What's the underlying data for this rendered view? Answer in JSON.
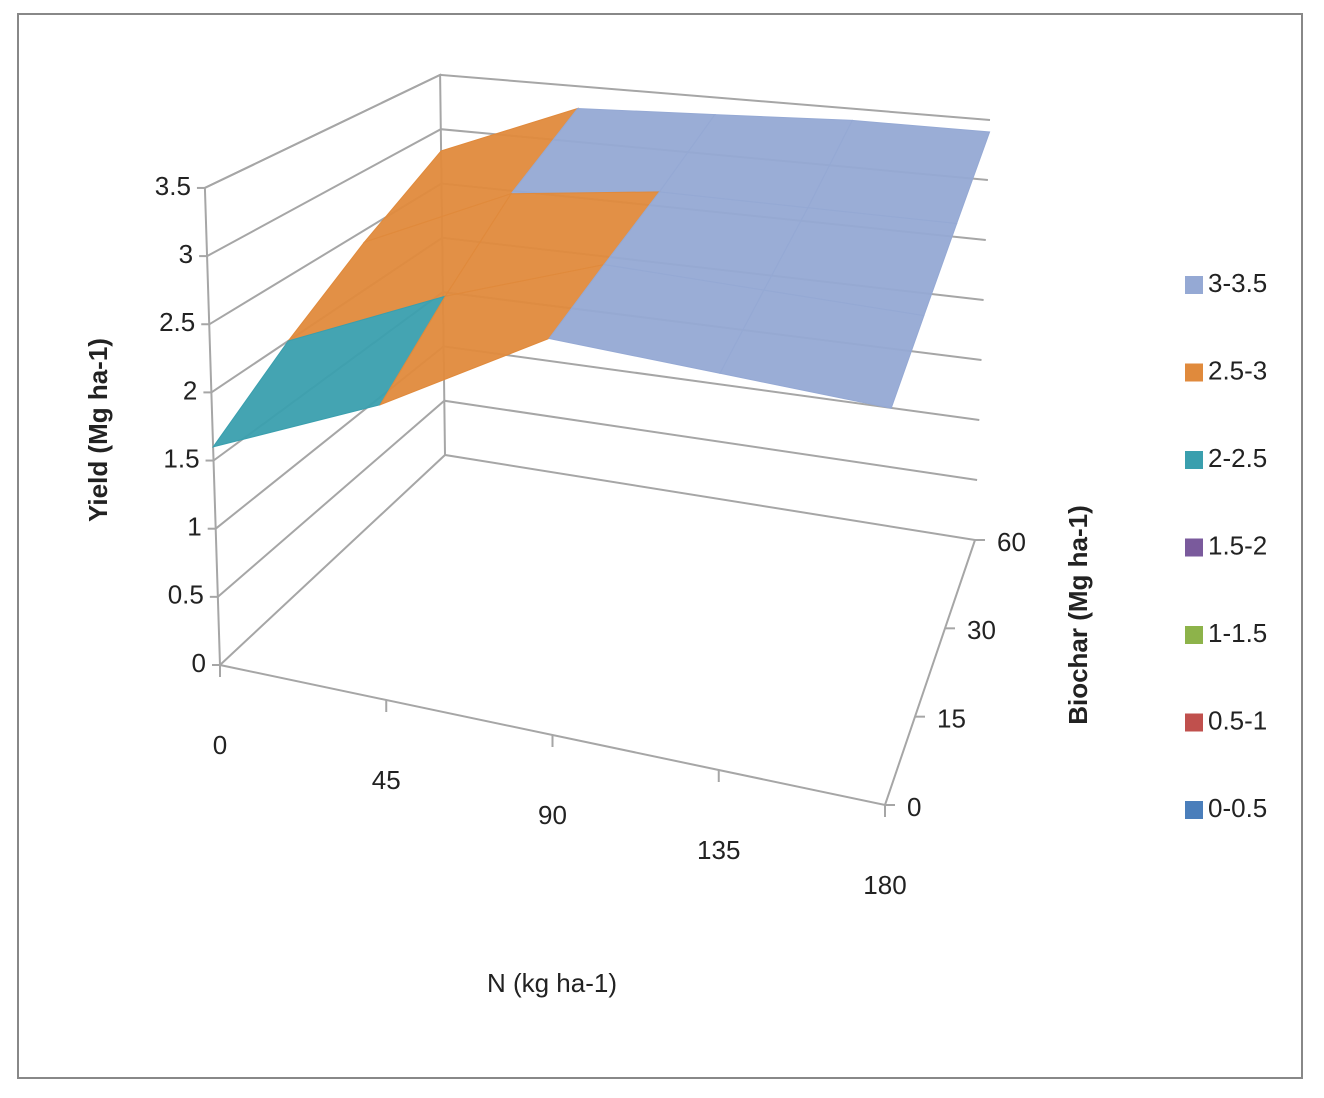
{
  "chart_data": {
    "type": "surface3d",
    "x_label": "N (kg ha-1)",
    "y_label": "Biochar (Mg ha-1)",
    "z_label": "Yield (Mg ha-1)",
    "xticks": [
      0,
      45,
      90,
      135,
      180
    ],
    "yticks": [
      0,
      15,
      30,
      60
    ],
    "zlim": [
      0,
      3.5
    ],
    "zticks": [
      0,
      0.5,
      1,
      1.5,
      2,
      2.5,
      3,
      3.5
    ],
    "values": [
      [
        1.6,
        2.2,
        3.0,
        3.05,
        3.1
      ],
      [
        2.0,
        2.6,
        3.1,
        3.15,
        3.2
      ],
      [
        2.4,
        3.0,
        3.2,
        3.25,
        3.3
      ],
      [
        2.8,
        3.3,
        3.35,
        3.4,
        3.4
      ]
    ],
    "legend": [
      {
        "label": "0-0.5",
        "color": "#4a7ebb"
      },
      {
        "label": "0.5-1",
        "color": "#c0504d"
      },
      {
        "label": "1-1.5",
        "color": "#8db34a"
      },
      {
        "label": "1.5-2",
        "color": "#7a5a9c"
      },
      {
        "label": "2-2.5",
        "color": "#3a9fae"
      },
      {
        "label": "2.5-3",
        "color": "#e08a3c"
      },
      {
        "label": "3-3.5",
        "color": "#95a9d4"
      }
    ]
  }
}
